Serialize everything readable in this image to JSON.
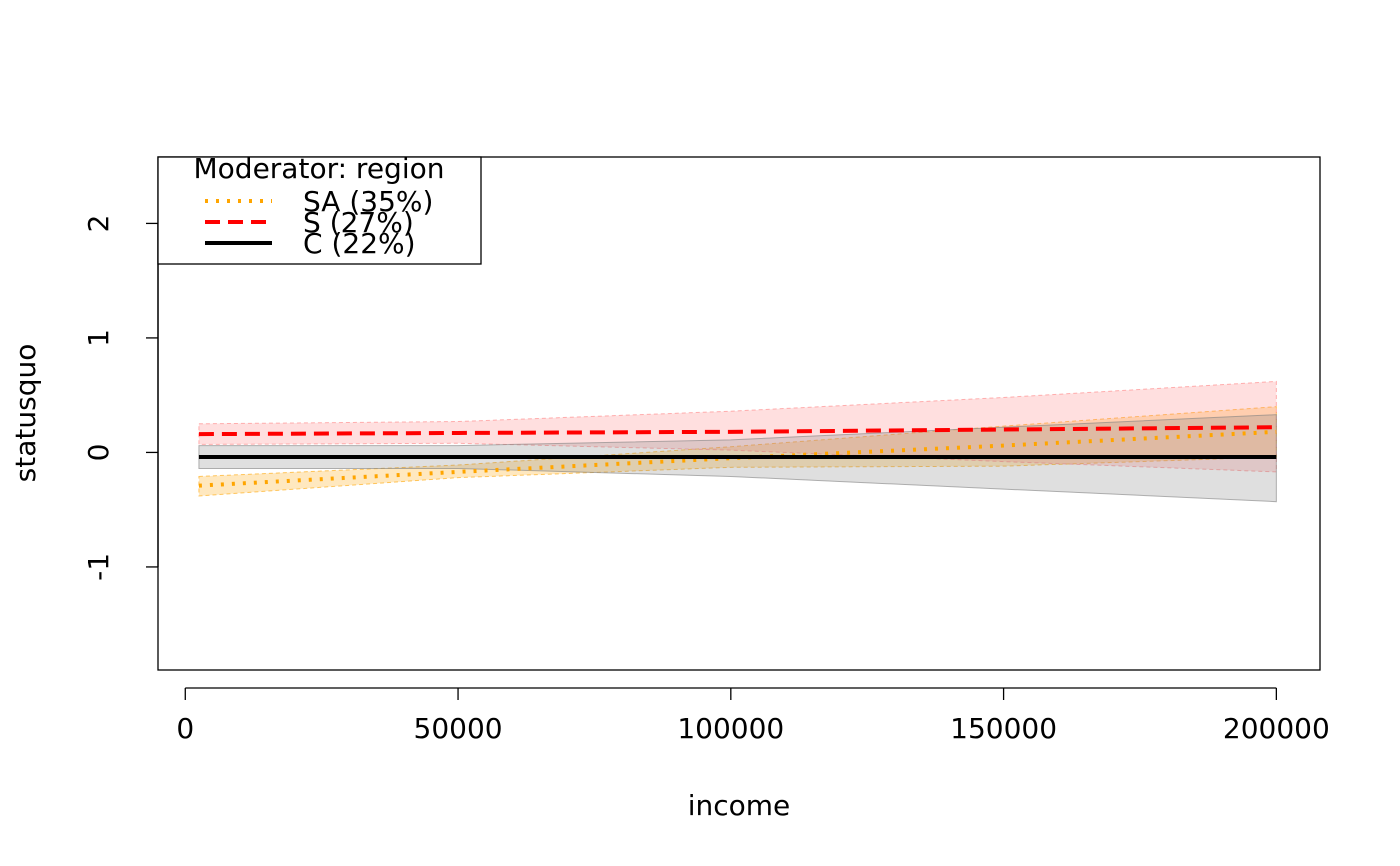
{
  "chart_data": {
    "type": "line",
    "title": "",
    "xlabel": "income",
    "ylabel": "statusquo",
    "xlim": [
      -5000,
      208000
    ],
    "ylim": [
      -1.9,
      2.58
    ],
    "xticks": [
      0,
      50000,
      100000,
      150000,
      200000
    ],
    "xtick_labels": [
      "0",
      "50000",
      "100000",
      "150000",
      "200000"
    ],
    "yticks": [
      -1,
      0,
      1,
      2
    ],
    "ytick_labels": [
      "-1",
      "0",
      "1",
      "2"
    ],
    "grid": false,
    "legend": {
      "position": "top-left",
      "title": "Moderator: region"
    },
    "series": [
      {
        "name": "SA (35%)",
        "color": "#FFA500",
        "line_style": "dotted",
        "fill_color": "#FFA500",
        "x": [
          2500,
          50000,
          100000,
          150000,
          200000
        ],
        "y": [
          -0.29,
          -0.17,
          -0.05,
          0.06,
          0.18
        ],
        "lower": [
          -0.38,
          -0.22,
          -0.13,
          -0.12,
          -0.04
        ],
        "upper": [
          -0.21,
          -0.11,
          0.05,
          0.23,
          0.4
        ]
      },
      {
        "name": "S (27%)",
        "color": "#FF0000",
        "line_style": "dashed",
        "fill_color": "#FF8080",
        "x": [
          2500,
          50000,
          100000,
          150000,
          200000
        ],
        "y": [
          0.16,
          0.17,
          0.18,
          0.2,
          0.22
        ],
        "lower": [
          0.07,
          0.08,
          0.02,
          -0.08,
          -0.17
        ],
        "upper": [
          0.25,
          0.27,
          0.36,
          0.48,
          0.62
        ]
      },
      {
        "name": "C (22%)",
        "color": "#000000",
        "line_style": "solid",
        "fill_color": "#808080",
        "x": [
          2500,
          50000,
          100000,
          150000,
          200000
        ],
        "y": [
          -0.04,
          -0.04,
          -0.04,
          -0.04,
          -0.04
        ],
        "lower": [
          -0.14,
          -0.14,
          -0.21,
          -0.32,
          -0.43
        ],
        "upper": [
          0.06,
          0.06,
          0.11,
          0.22,
          0.33
        ]
      }
    ]
  }
}
